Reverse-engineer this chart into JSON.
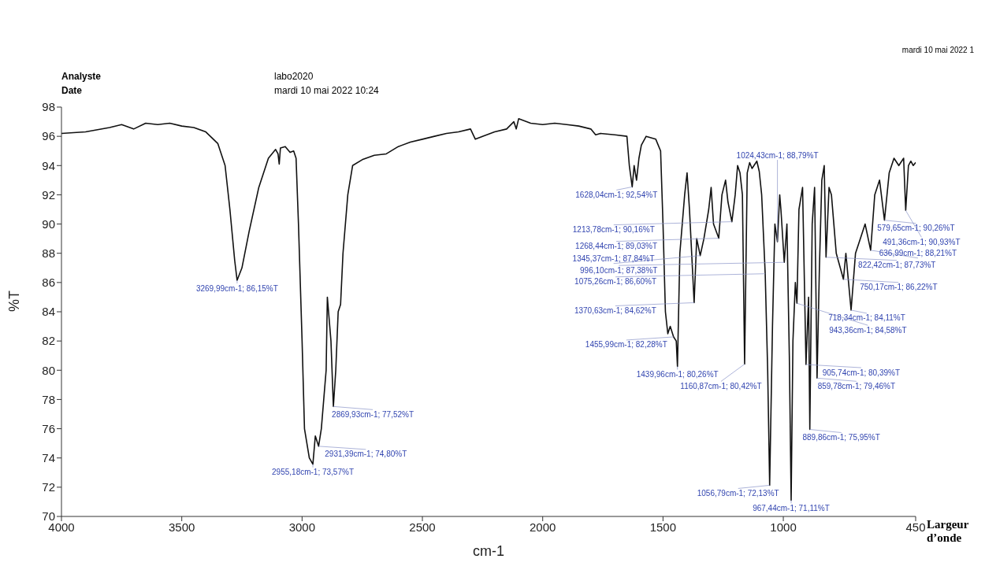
{
  "chart_data": {
    "type": "line",
    "xlabel": "cm-1",
    "ylabel": "%T",
    "xlim": [
      4000,
      450
    ],
    "xticks": [
      4000,
      3500,
      3000,
      2500,
      2000,
      1500,
      1000,
      450
    ],
    "ylim": [
      70,
      98
    ],
    "yticks": [
      70,
      72,
      74,
      76,
      78,
      80,
      82,
      84,
      86,
      88,
      90,
      92,
      94,
      96,
      98
    ],
    "series": [
      {
        "color": "#111111",
        "x": [
          4000,
          3900,
          3800,
          3750,
          3700,
          3650,
          3600,
          3550,
          3500,
          3450,
          3400,
          3350,
          3320,
          3300,
          3280,
          3269.99,
          3250,
          3220,
          3180,
          3140,
          3110,
          3100,
          3095,
          3090,
          3070,
          3050,
          3035,
          3025,
          3015,
          3000,
          2990,
          2970,
          2955.18,
          2945,
          2931.39,
          2920,
          2900,
          2895,
          2880,
          2869.93,
          2860,
          2850,
          2840,
          2830,
          2810,
          2790,
          2750,
          2700,
          2650,
          2600,
          2550,
          2500,
          2450,
          2400,
          2350,
          2300,
          2280,
          2250,
          2200,
          2150,
          2120,
          2110,
          2100,
          2050,
          2000,
          1950,
          1900,
          1850,
          1800,
          1780,
          1760,
          1700,
          1650,
          1640,
          1628.04,
          1620,
          1610,
          1600,
          1590,
          1570,
          1530,
          1510,
          1500,
          1490,
          1480,
          1470,
          1455.99,
          1445,
          1439.96,
          1430,
          1410,
          1400,
          1390,
          1370.63,
          1360,
          1345.37,
          1330,
          1310,
          1300,
          1290,
          1268.44,
          1255,
          1240,
          1230,
          1213.78,
          1200,
          1190,
          1180,
          1170,
          1160.87,
          1150,
          1140,
          1130,
          1110,
          1100,
          1090,
          1075.26,
          1065,
          1056.79,
          1045,
          1035,
          1024.43,
          1015,
          1010,
          996.1,
          985,
          975,
          967.44,
          960,
          950,
          943.36,
          935,
          920,
          905.74,
          895,
          889.86,
          880,
          870,
          859.78,
          850,
          840,
          830,
          822.42,
          810,
          800,
          790,
          780,
          750.17,
          740,
          718.34,
          700,
          680,
          660,
          636.99,
          620,
          600,
          579.65,
          560,
          540,
          520,
          500,
          491.36,
          480,
          470,
          460,
          450
        ],
        "values": [
          96.2,
          96.3,
          96.6,
          96.8,
          96.5,
          96.9,
          96.8,
          96.9,
          96.7,
          96.6,
          96.3,
          95.5,
          94,
          91,
          87.5,
          86.15,
          87,
          89.5,
          92.5,
          94.5,
          95.1,
          94.8,
          94.1,
          95.2,
          95.3,
          94.9,
          95,
          94.5,
          90,
          82,
          76,
          74,
          73.57,
          75.5,
          74.8,
          76,
          80,
          85,
          82,
          77.52,
          80,
          84,
          84.5,
          88,
          92,
          94,
          94.4,
          94.7,
          94.8,
          95.3,
          95.6,
          95.8,
          96,
          96.2,
          96.3,
          96.5,
          95.8,
          96,
          96.3,
          96.5,
          97,
          96.5,
          97.2,
          96.9,
          96.8,
          96.9,
          96.8,
          96.7,
          96.5,
          96.1,
          96.2,
          96.1,
          96,
          94,
          92.54,
          94,
          93,
          94.5,
          95.4,
          96,
          95.8,
          95,
          90,
          84,
          82.5,
          83,
          82.28,
          82,
          80.26,
          88,
          92,
          93.5,
          91,
          84.62,
          89,
          87.84,
          89,
          91,
          92.5,
          90,
          89.03,
          92,
          93,
          91.5,
          90.16,
          92,
          94,
          93.5,
          92,
          80.42,
          93.5,
          94.2,
          93.8,
          94.3,
          93.6,
          92,
          86.6,
          80,
          72.13,
          83,
          90,
          88.79,
          92,
          91,
          87.38,
          90,
          81,
          71.11,
          82,
          86,
          84.58,
          91,
          92.5,
          80.39,
          85,
          75.95,
          90,
          92.5,
          79.46,
          87,
          93,
          94,
          87.73,
          92.5,
          92,
          90,
          88,
          86.22,
          88,
          84.11,
          88,
          89,
          90,
          88.21,
          92,
          93,
          90.26,
          93.5,
          94.5,
          94,
          94.5,
          90.93,
          94,
          94.3,
          94,
          94.2
        ]
      }
    ],
    "annotations": [
      "mardi 10 mai 2022 1",
      "Analyste",
      "labo2020",
      "Date",
      "mardi 10 mai 2022 10:24",
      "Largeur d’onde",
      {
        "text": "3269,99cm-1; 86,15%T",
        "x": 3269.99,
        "y": 86.15
      },
      {
        "text": "2869,93cm-1; 77,52%T",
        "x": 2869.93,
        "y": 77.52
      },
      {
        "text": "2931,39cm-1; 74,80%T",
        "x": 2931.39,
        "y": 74.8
      },
      {
        "text": "2955,18cm-1; 73,57%T",
        "x": 2955.18,
        "y": 73.57
      },
      {
        "text": "1628,04cm-1; 92,54%T",
        "x": 1628.04,
        "y": 92.54
      },
      {
        "text": "1213,78cm-1; 90,16%T",
        "x": 1213.78,
        "y": 90.16
      },
      {
        "text": "1024,43cm-1; 88,79%T",
        "x": 1024.43,
        "y": 88.79
      },
      {
        "text": "1345,37cm-1; 87,84%T",
        "x": 1345.37,
        "y": 87.84
      },
      {
        "text": "822,42cm-1; 87,73%T",
        "x": 822.42,
        "y": 87.73
      },
      {
        "text": "996,10cm-1; 87,38%T",
        "x": 996.1,
        "y": 87.38
      },
      {
        "text": "1075,26cm-1; 86,60%T",
        "x": 1075.26,
        "y": 86.6
      },
      {
        "text": "750,17cm-1; 86,22%T",
        "x": 750.17,
        "y": 86.22
      },
      {
        "text": "1268,44cm-1; 89,03%T",
        "x": 1268.44,
        "y": 89.03
      },
      {
        "text": "636,99cm-1; 88,21%T",
        "x": 636.99,
        "y": 88.21
      },
      {
        "text": "1370,63cm-1; 84,62%T",
        "x": 1370.63,
        "y": 84.62
      },
      {
        "text": "718,34cm-1; 84,11%T",
        "x": 718.34,
        "y": 84.11
      },
      {
        "text": "943,36cm-1; 84,58%T",
        "x": 943.36,
        "y": 84.58
      },
      {
        "text": "1455,99cm-1; 82,28%T",
        "x": 1455.99,
        "y": 82.28
      },
      {
        "text": "1160,87cm-1; 80,42%T",
        "x": 1160.87,
        "y": 80.42
      },
      {
        "text": "1439,96cm-1; 80,26%T",
        "x": 1439.96,
        "y": 80.26
      },
      {
        "text": "905,74cm-1; 80,39%T",
        "x": 905.74,
        "y": 80.39
      },
      {
        "text": "859,78cm-1; 79,46%T",
        "x": 859.78,
        "y": 79.46
      },
      {
        "text": "889,86cm-1; 75,95%T",
        "x": 889.86,
        "y": 75.95
      },
      {
        "text": "1056,79cm-1; 72,13%T",
        "x": 1056.79,
        "y": 72.13
      },
      {
        "text": "967,44cm-1; 71,11%T",
        "x": 967.44,
        "y": 71.11
      },
      {
        "text": "491,36cm-1; 90,93%T",
        "x": 491.36,
        "y": 90.93
      },
      {
        "text": "579,65cm-1; 90,26%T",
        "x": 579.65,
        "y": 90.26
      }
    ]
  }
}
